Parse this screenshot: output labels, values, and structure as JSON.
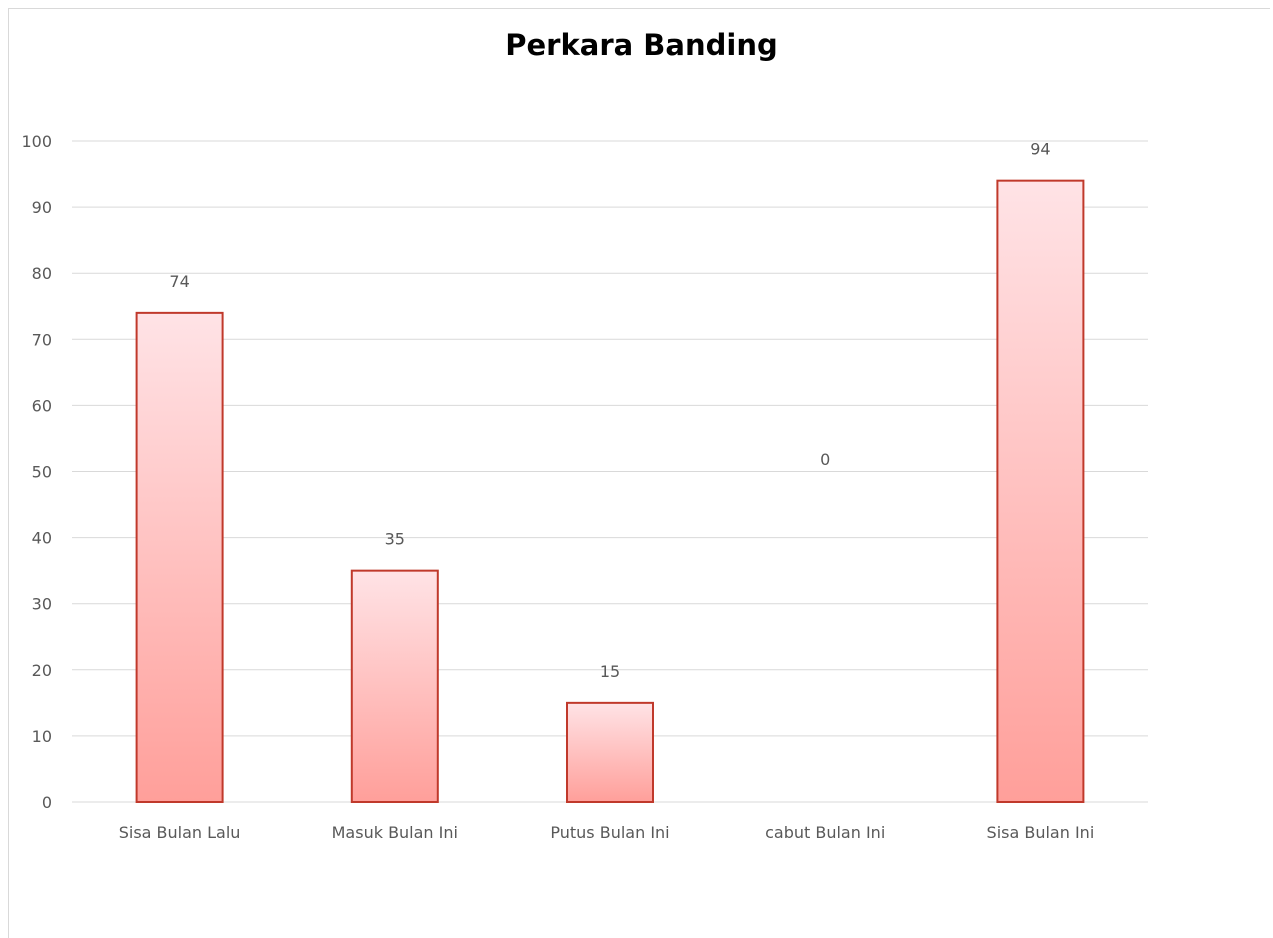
{
  "chart_data": {
    "type": "bar",
    "title": "Perkara Banding",
    "xlabel": "",
    "ylabel": "",
    "categories": [
      "Sisa Bulan Lalu",
      "Masuk Bulan Ini",
      "Putus Bulan Ini",
      "cabut Bulan Ini",
      "Sisa Bulan Ini"
    ],
    "values": [
      74,
      35,
      15,
      0,
      94
    ],
    "data_labels": [
      "74",
      "35",
      "15",
      "0",
      "94"
    ],
    "ylim": [
      0,
      100
    ],
    "yticks": [
      0,
      10,
      20,
      30,
      40,
      50,
      60,
      70,
      80,
      90,
      100
    ],
    "grid": true,
    "legend": "none",
    "colors": {
      "bar_top": "#ffe3e6",
      "bar_bottom": "#ff9f9a",
      "bar_border": "#c0392b",
      "gridline": "#d9d9d9",
      "tick_label": "#595959"
    }
  }
}
